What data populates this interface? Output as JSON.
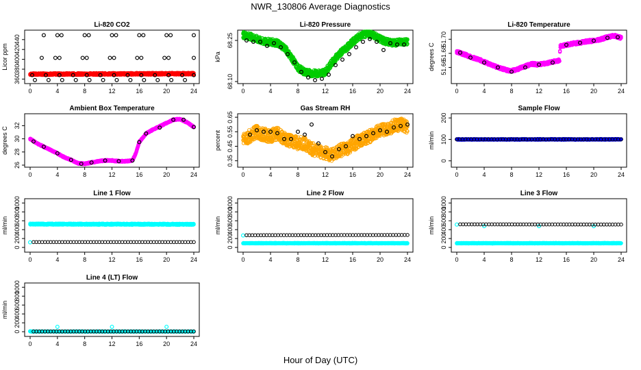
{
  "title": "NWR_130806  Average Diagnostics",
  "xlabel": "Hour of Day (UTC)",
  "x_ticks": [
    0,
    4,
    8,
    12,
    16,
    20,
    24
  ],
  "colors": {
    "black": "#000000",
    "red": "#ff0000",
    "green": "#00cc00",
    "magenta": "#ff00ff",
    "orange": "#ffa500",
    "blue": "#0000ff",
    "cyan": "#00ffff"
  },
  "chart_data": [
    {
      "type": "scatter",
      "title": "Li-820 CO2",
      "ylabel": "Licor ppm",
      "xlim": [
        0,
        24
      ],
      "ylim": [
        355,
        455
      ],
      "yticks": [
        360,
        380,
        400,
        420,
        440
      ],
      "series": [
        {
          "color": "#ff0000",
          "style": "band",
          "x": [
            0,
            24
          ],
          "y": [
            370,
            371
          ],
          "spread": 2
        },
        {
          "color": "#000000",
          "x": [
            0.3,
            2.3,
            4.3,
            6.3,
            8.3,
            10.3,
            12.3,
            14.3,
            16.3,
            18.3,
            20.3,
            22.3,
            24
          ],
          "y": [
            368,
            368,
            368,
            368,
            368,
            368,
            368,
            368,
            368,
            368,
            368,
            368,
            368
          ]
        },
        {
          "color": "#000000",
          "x": [
            2,
            4,
            4.6,
            8,
            8.6,
            12,
            12.6,
            16,
            16.6,
            20,
            20.6,
            24
          ],
          "y": [
            449,
            449,
            449,
            449,
            449,
            449,
            449,
            449,
            449,
            449,
            449,
            449
          ]
        },
        {
          "color": "#000000",
          "x": [
            1.7,
            3.7,
            4.3,
            7.7,
            8.3,
            11.7,
            12.3,
            15.7,
            16.3,
            19.7,
            20.3,
            24
          ],
          "y": [
            403,
            403,
            403,
            403,
            403,
            403,
            403,
            403,
            403,
            403,
            403,
            403
          ]
        },
        {
          "color": "#000000",
          "x": [
            0.7,
            2.7,
            4.7,
            6.7,
            8.7,
            10.7,
            12.7,
            14.7,
            16.7,
            18.7,
            20.7,
            22.7
          ],
          "y": [
            358,
            358,
            358,
            358,
            358,
            358,
            358,
            358,
            358,
            358,
            358,
            358
          ]
        }
      ]
    },
    {
      "type": "scatter",
      "title": "Li-820 Pressure",
      "ylabel": "kPa",
      "xlim": [
        0,
        24
      ],
      "ylim": [
        68.1,
        68.28
      ],
      "yticks": [
        68.1,
        68.25
      ],
      "ytick_labels": [
        "68.10",
        "68.25"
      ],
      "series": [
        {
          "color": "#00cc00",
          "style": "band",
          "x": [
            0,
            1,
            2,
            3,
            4,
            5,
            6,
            7,
            8,
            9,
            10,
            11,
            12,
            13,
            14,
            15,
            16,
            17,
            18,
            19,
            20,
            21,
            22,
            23,
            24
          ],
          "y": [
            68.27,
            68.265,
            68.255,
            68.245,
            68.245,
            68.24,
            68.225,
            68.19,
            68.15,
            68.135,
            68.13,
            68.13,
            68.135,
            68.17,
            68.2,
            68.22,
            68.245,
            68.265,
            68.275,
            68.27,
            68.255,
            68.245,
            68.24,
            68.245,
            68.245
          ],
          "spread": 0.012
        },
        {
          "color": "#000000",
          "x": [
            0.5,
            1.5,
            2.5,
            3.5,
            4.5,
            5.5,
            6.5,
            7.5,
            8.5,
            9.5,
            10.5,
            11.5,
            12.5,
            13.5,
            14.5,
            15.5,
            16.5,
            17.5,
            18.5,
            19.5,
            20.5,
            21.5,
            22.5,
            23.5
          ],
          "y": [
            68.25,
            68.245,
            68.245,
            68.23,
            68.24,
            68.225,
            68.2,
            68.17,
            68.135,
            68.115,
            68.105,
            68.11,
            68.125,
            68.16,
            68.18,
            68.2,
            68.225,
            68.245,
            68.255,
            68.245,
            68.215,
            68.24,
            68.235,
            68.235
          ]
        }
      ]
    },
    {
      "type": "scatter",
      "title": "Li-820 Temperature",
      "ylabel": "degrees C",
      "xlim": [
        0,
        24
      ],
      "ylim": [
        51.64,
        51.71
      ],
      "yticks": [
        51.66,
        51.68,
        51.7
      ],
      "ytick_labels": [
        "51.66",
        "51.68",
        "51.70"
      ],
      "series": [
        {
          "color": "#ff00ff",
          "style": "band",
          "x": [
            0,
            1,
            2,
            3,
            4,
            5,
            6,
            7,
            8,
            9,
            10,
            11,
            12,
            13,
            14,
            15,
            15.1,
            16,
            17,
            18,
            19,
            20,
            21,
            22,
            23,
            24
          ],
          "y": [
            51.682,
            51.679,
            51.675,
            51.672,
            51.668,
            51.664,
            51.66,
            51.657,
            51.655,
            51.658,
            51.662,
            51.665,
            51.664,
            51.666,
            51.668,
            51.67,
            51.69,
            51.692,
            51.694,
            51.695,
            51.697,
            51.698,
            51.7,
            51.703,
            51.705,
            51.702
          ],
          "spread": 0.002
        },
        {
          "color": "#000000",
          "x": [
            0.5,
            2,
            4,
            6,
            8,
            10,
            12,
            14,
            16,
            18,
            20,
            22,
            23.5
          ],
          "y": [
            51.681,
            51.674,
            51.667,
            51.66,
            51.654,
            51.66,
            51.664,
            51.667,
            51.692,
            51.695,
            51.698,
            51.702,
            51.703
          ]
        }
      ]
    },
    {
      "type": "scatter",
      "title": "Ambient Box Temperature",
      "ylabel": "degrees C",
      "xlim": [
        0,
        24
      ],
      "ylim": [
        26,
        33.5
      ],
      "yticks": [
        26,
        28,
        30,
        32
      ],
      "series": [
        {
          "color": "#ff00ff",
          "style": "band",
          "x": [
            0,
            1,
            2,
            3,
            4,
            5,
            6,
            7,
            8,
            9,
            10,
            11,
            12,
            13,
            14,
            15,
            15.5,
            16,
            17,
            18,
            19,
            20,
            21,
            22,
            23,
            24
          ],
          "y": [
            30.0,
            29.3,
            28.8,
            28.3,
            27.8,
            27.2,
            26.8,
            26.3,
            26.2,
            26.4,
            26.6,
            26.7,
            26.7,
            26.6,
            26.6,
            26.7,
            27.8,
            29.5,
            30.8,
            31.4,
            31.9,
            32.4,
            32.9,
            33.0,
            32.5,
            31.8
          ],
          "spread": 0.1
        },
        {
          "color": "#000000",
          "x": [
            0.5,
            2,
            4,
            6,
            7.5,
            9,
            11,
            13,
            15,
            16,
            17,
            19,
            21,
            22.5,
            24
          ],
          "y": [
            29.6,
            28.8,
            27.8,
            26.8,
            26.2,
            26.4,
            26.7,
            26.6,
            26.7,
            29.5,
            30.8,
            31.7,
            32.9,
            32.9,
            31.8
          ]
        }
      ]
    },
    {
      "type": "scatter",
      "title": "Gas Stream RH",
      "ylabel": "percent",
      "xlim": [
        0,
        24
      ],
      "ylim": [
        0.32,
        0.66
      ],
      "yticks": [
        0.35,
        0.45,
        0.55,
        0.65
      ],
      "ytick_labels": [
        "0.35",
        "0.45",
        "0.55",
        "0.65"
      ],
      "series": [
        {
          "color": "#ffa500",
          "style": "band",
          "x": [
            0,
            1,
            2,
            3,
            4,
            5,
            6,
            7,
            8,
            9,
            10,
            11,
            12,
            13,
            14,
            15,
            16,
            17,
            18,
            19,
            20,
            21,
            22,
            23,
            24
          ],
          "y": [
            0.5,
            0.52,
            0.55,
            0.53,
            0.52,
            0.54,
            0.5,
            0.49,
            0.47,
            0.47,
            0.43,
            0.42,
            0.4,
            0.39,
            0.42,
            0.43,
            0.46,
            0.49,
            0.51,
            0.53,
            0.56,
            0.57,
            0.59,
            0.6,
            0.58
          ],
          "spread": 0.045
        },
        {
          "color": "#000000",
          "x": [
            1,
            2,
            3,
            4,
            5,
            6,
            7,
            8,
            9,
            10,
            11,
            12,
            13,
            14,
            15,
            16,
            17,
            18,
            19,
            20,
            21,
            22,
            23,
            24
          ],
          "y": [
            0.53,
            0.56,
            0.55,
            0.55,
            0.54,
            0.5,
            0.5,
            0.55,
            0.53,
            0.6,
            0.47,
            0.41,
            0.38,
            0.43,
            0.45,
            0.52,
            0.5,
            0.52,
            0.54,
            0.56,
            0.55,
            0.58,
            0.59,
            0.6
          ]
        }
      ]
    },
    {
      "type": "scatter",
      "title": "Sample Flow",
      "ylabel": "ml/min",
      "xlim": [
        0,
        24
      ],
      "ylim": [
        -20,
        210
      ],
      "yticks": [
        0,
        100,
        200
      ],
      "series": [
        {
          "color": "#0000ff",
          "style": "band",
          "x": [
            0,
            24
          ],
          "y": [
            100,
            100
          ],
          "spread": 2
        },
        {
          "color": "#000000",
          "style": "dense",
          "x": [
            0,
            24
          ],
          "y": [
            100,
            100
          ]
        }
      ]
    },
    {
      "type": "scatter",
      "title": "Line 1 Flow",
      "ylabel": "ml/min",
      "xlim": [
        0,
        24
      ],
      "ylim": [
        -60,
        1050
      ],
      "yticks": [
        0,
        200,
        400,
        600,
        800,
        1000
      ],
      "series": [
        {
          "color": "#00ffff",
          "style": "band",
          "x": [
            0,
            24
          ],
          "y": [
            525,
            520
          ],
          "spread": 15
        },
        {
          "color": "#00ffff",
          "x": [
            0
          ],
          "y": [
            115
          ]
        },
        {
          "color": "#000000",
          "style": "dense",
          "x": [
            0.5,
            24
          ],
          "y": [
            120,
            120
          ]
        }
      ]
    },
    {
      "type": "scatter",
      "title": "Line 2 Flow",
      "ylabel": "ml/min",
      "xlim": [
        0,
        24
      ],
      "ylim": [
        -60,
        1050
      ],
      "yticks": [
        0,
        200,
        400,
        600,
        800,
        1000
      ],
      "series": [
        {
          "color": "#00ffff",
          "style": "band",
          "x": [
            0,
            24
          ],
          "y": [
            95,
            95
          ],
          "spread": 8
        },
        {
          "color": "#00ffff",
          "x": [
            0
          ],
          "y": [
            270
          ]
        },
        {
          "color": "#000000",
          "style": "dense",
          "x": [
            0.5,
            24
          ],
          "y": [
            275,
            280
          ]
        }
      ]
    },
    {
      "type": "scatter",
      "title": "Line 3 Flow",
      "ylabel": "ml/min",
      "xlim": [
        0,
        24
      ],
      "ylim": [
        -60,
        1050
      ],
      "yticks": [
        0,
        200,
        400,
        600,
        800,
        1000
      ],
      "series": [
        {
          "color": "#00ffff",
          "style": "band",
          "x": [
            0,
            24
          ],
          "y": [
            95,
            95
          ],
          "spread": 8
        },
        {
          "color": "#00ffff",
          "x": [
            0,
            4,
            12,
            20
          ],
          "y": [
            515,
            480,
            480,
            480
          ]
        },
        {
          "color": "#000000",
          "style": "dense",
          "x": [
            0.5,
            24
          ],
          "y": [
            520,
            515
          ]
        }
      ]
    },
    {
      "type": "scatter",
      "title": "Line 4 (LT) Flow",
      "ylabel": "ml/min",
      "xlim": [
        0,
        24
      ],
      "ylim": [
        -60,
        1050
      ],
      "yticks": [
        0,
        200,
        400,
        600,
        800,
        1000
      ],
      "series": [
        {
          "color": "#00ffff",
          "style": "band",
          "x": [
            0,
            24
          ],
          "y": [
            5,
            5
          ],
          "spread": 5
        },
        {
          "color": "#00ffff",
          "x": [
            0,
            4,
            12,
            20
          ],
          "y": [
            10,
            110,
            110,
            110
          ]
        },
        {
          "color": "#000000",
          "style": "dense",
          "x": [
            0.5,
            24
          ],
          "y": [
            5,
            5
          ]
        }
      ]
    }
  ]
}
